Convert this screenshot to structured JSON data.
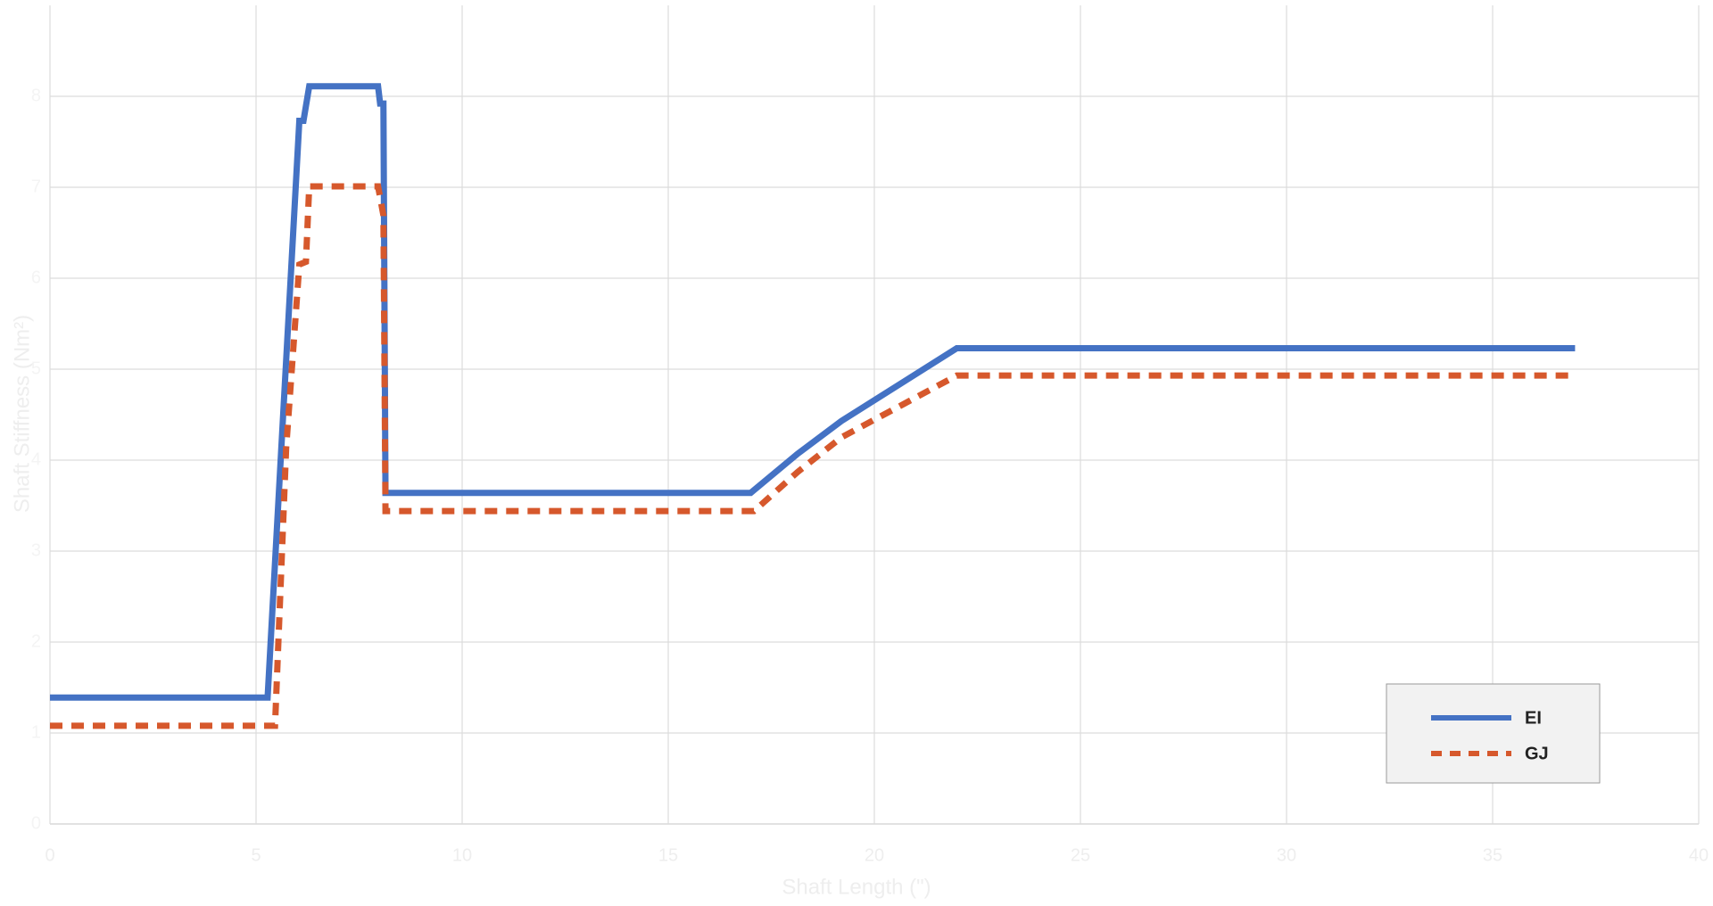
{
  "chart_data": {
    "type": "line",
    "x_label": "Shaft Length (\")",
    "y_label": "Shaft Stiffness (Nm²)",
    "xlim": [
      0,
      40
    ],
    "xticks": [
      0,
      5,
      10,
      15,
      20,
      25,
      30,
      35,
      40
    ],
    "ylim": [
      0,
      9
    ],
    "yticks": [
      0,
      1,
      2,
      3,
      4,
      5,
      6,
      7,
      8
    ],
    "grid": true,
    "legend": "lower right",
    "series": [
      {
        "name": "EI",
        "color": "#4472c4",
        "style": "solid",
        "x": [
          0,
          5.28,
          6.05,
          6.15,
          6.29,
          7.96,
          8.01,
          8.09,
          8.14,
          17.0,
          18.14,
          19.2,
          22.0,
          37.0
        ],
        "values": [
          1.39,
          1.39,
          7.73,
          7.73,
          8.11,
          8.11,
          7.92,
          7.92,
          3.64,
          3.64,
          4.07,
          4.43,
          5.23,
          5.23
        ]
      },
      {
        "name": "GJ",
        "color": "#d6582c",
        "style": "dashed",
        "x": [
          0,
          5.46,
          5.73,
          6.05,
          6.21,
          6.29,
          7.96,
          8.09,
          8.14,
          17.08,
          18.14,
          19.2,
          22.0,
          37.0
        ],
        "values": [
          1.08,
          1.08,
          4.13,
          6.15,
          6.18,
          7.01,
          7.01,
          6.69,
          3.44,
          3.44,
          3.87,
          4.25,
          4.93,
          4.93
        ]
      }
    ]
  }
}
